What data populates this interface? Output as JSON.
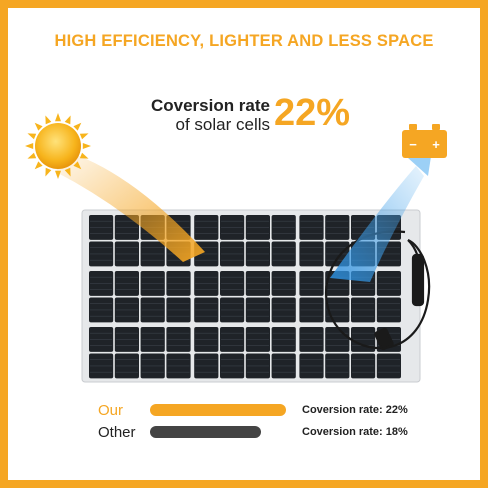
{
  "headline": "HIGH EFFICIENCY, LIGHTER AND LESS SPACE",
  "conversion": {
    "line1": "Coversion rate",
    "line2": "of solar cells",
    "value": "22%"
  },
  "icons": {
    "sun": "sun-icon",
    "battery": "battery-icon",
    "battery_minus": "−",
    "battery_plus": "+"
  },
  "comparison": [
    {
      "label": "Our",
      "stat": "Coversion rate: 22%",
      "rate": 0.22,
      "color": "#f5a623"
    },
    {
      "label": "Other",
      "stat": "Coversion rate: 18%",
      "rate": 0.18,
      "color": "#444444"
    }
  ],
  "colors": {
    "accent": "#f5a623",
    "panel_cell": "#1f2328",
    "dark_bar": "#444444"
  }
}
